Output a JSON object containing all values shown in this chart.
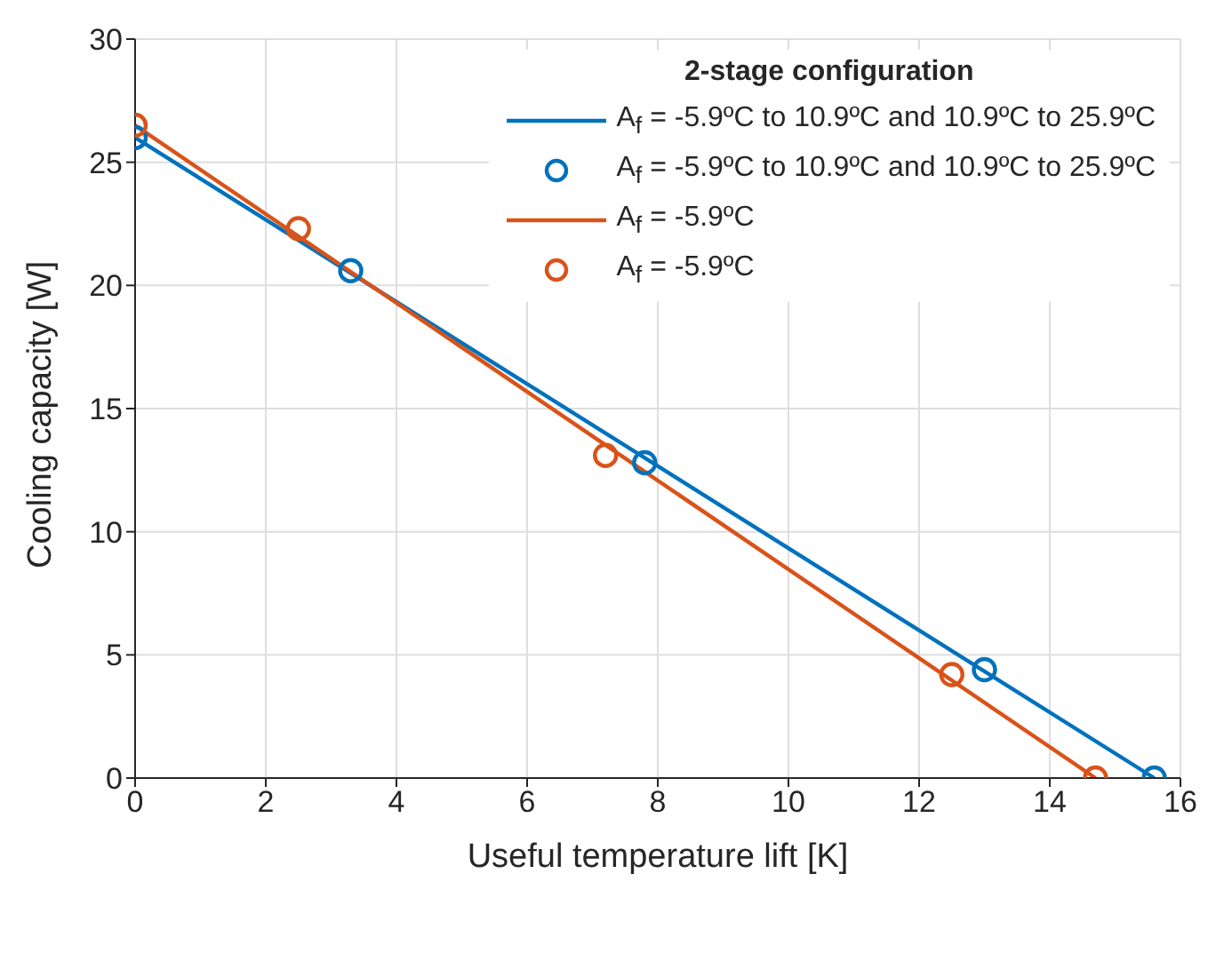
{
  "chart_data": {
    "type": "line",
    "xlabel": "Useful temperature lift [K]",
    "ylabel": "Cooling capacity [W]",
    "legend_title": "2-stage configuration",
    "xlim": [
      0,
      16
    ],
    "xticks": [
      0,
      2,
      4,
      6,
      8,
      10,
      12,
      14,
      16
    ],
    "ylim": [
      0,
      30
    ],
    "yticks": [
      0,
      5,
      10,
      15,
      20,
      25,
      30
    ],
    "grid": true,
    "legend": "top right",
    "series": [
      {
        "name": "A$_{f}$ = -5.9ºC to 10.9ºC and 10.9ºC to 25.9ºC",
        "marker": "none",
        "color": "#0072bd",
        "x": [
          0,
          15.6
        ],
        "values": [
          26.0,
          0
        ]
      },
      {
        "name": "A$_{f}$ = -5.9ºC to 10.9ºC and 10.9ºC to 25.9ºC",
        "type": "scatter",
        "marker": "circle",
        "color": "#0072bd",
        "x": [
          0,
          3.3,
          7.8,
          13.0,
          15.6
        ],
        "values": [
          26.0,
          20.6,
          12.8,
          4.4,
          0
        ]
      },
      {
        "name": "A$_{f}$ = -5.9ºC",
        "marker": "none",
        "color": "#d95319",
        "x": [
          0,
          14.7
        ],
        "values": [
          26.5,
          0
        ]
      },
      {
        "name": "A$_{f}$ = -5.9ºC",
        "type": "scatter",
        "marker": "circle",
        "color": "#d95319",
        "x": [
          0,
          2.5,
          7.2,
          12.5,
          14.7
        ],
        "values": [
          26.5,
          22.3,
          13.1,
          4.2,
          0
        ]
      }
    ]
  }
}
